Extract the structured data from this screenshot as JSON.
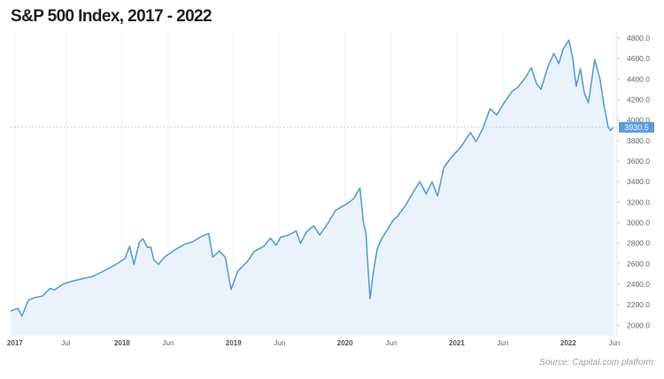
{
  "chart_data": {
    "type": "area",
    "title": "S&P 500 Index, 2017 - 2022",
    "xlabel": "",
    "ylabel": "",
    "ylim": [
      1900,
      4860
    ],
    "xlim": [
      "2017-01-01",
      "2022-06-10"
    ],
    "grid": "vertical",
    "legend": "none",
    "current_value_label": "3930.5",
    "y_ticks": [
      "2000.0",
      "2200.0",
      "2400.0",
      "2600.0",
      "2800.0",
      "3000.0",
      "3200.0",
      "3400.0",
      "3600.0",
      "3800.0",
      "4000.0",
      "4200.0",
      "4400.0",
      "4600.0",
      "4800.0"
    ],
    "x_ticks": [
      {
        "label": "2017",
        "date": "2017-01-15",
        "year": true
      },
      {
        "label": "Jul",
        "date": "2017-07-01",
        "year": false
      },
      {
        "label": "2018",
        "date": "2018-01-01",
        "year": true
      },
      {
        "label": "Jun",
        "date": "2018-06-01",
        "year": false
      },
      {
        "label": "2019",
        "date": "2019-01-01",
        "year": true
      },
      {
        "label": "Jun",
        "date": "2019-06-01",
        "year": false
      },
      {
        "label": "2020",
        "date": "2020-01-01",
        "year": true
      },
      {
        "label": "Jun",
        "date": "2020-06-01",
        "year": false
      },
      {
        "label": "2021",
        "date": "2021-01-01",
        "year": true
      },
      {
        "label": "Jun",
        "date": "2021-06-01",
        "year": false
      },
      {
        "label": "2022",
        "date": "2022-01-01",
        "year": true
      },
      {
        "label": "Jun",
        "date": "2022-06-01",
        "year": false
      }
    ],
    "series": [
      {
        "name": "",
        "points": [
          [
            "2017-01-01",
            2140
          ],
          [
            "2017-01-25",
            2165
          ],
          [
            "2017-02-07",
            2090
          ],
          [
            "2017-02-28",
            2245
          ],
          [
            "2017-03-20",
            2270
          ],
          [
            "2017-04-15",
            2285
          ],
          [
            "2017-05-10",
            2360
          ],
          [
            "2017-05-25",
            2345
          ],
          [
            "2017-06-20",
            2400
          ],
          [
            "2017-07-15",
            2425
          ],
          [
            "2017-08-10",
            2445
          ],
          [
            "2017-09-01",
            2460
          ],
          [
            "2017-09-25",
            2475
          ],
          [
            "2017-10-20",
            2510
          ],
          [
            "2017-11-15",
            2550
          ],
          [
            "2017-12-10",
            2590
          ],
          [
            "2018-01-10",
            2650
          ],
          [
            "2018-01-26",
            2770
          ],
          [
            "2018-02-09",
            2595
          ],
          [
            "2018-02-26",
            2805
          ],
          [
            "2018-03-10",
            2845
          ],
          [
            "2018-03-25",
            2760
          ],
          [
            "2018-04-05",
            2760
          ],
          [
            "2018-04-15",
            2640
          ],
          [
            "2018-04-30",
            2595
          ],
          [
            "2018-05-20",
            2665
          ],
          [
            "2018-06-10",
            2710
          ],
          [
            "2018-07-01",
            2750
          ],
          [
            "2018-07-25",
            2790
          ],
          [
            "2018-08-20",
            2815
          ],
          [
            "2018-09-20",
            2870
          ],
          [
            "2018-10-12",
            2895
          ],
          [
            "2018-10-25",
            2665
          ],
          [
            "2018-11-15",
            2725
          ],
          [
            "2018-12-05",
            2665
          ],
          [
            "2018-12-24",
            2350
          ],
          [
            "2019-01-15",
            2530
          ],
          [
            "2019-02-15",
            2620
          ],
          [
            "2019-03-10",
            2720
          ],
          [
            "2019-04-10",
            2770
          ],
          [
            "2019-05-02",
            2850
          ],
          [
            "2019-05-20",
            2780
          ],
          [
            "2019-06-05",
            2860
          ],
          [
            "2019-07-01",
            2880
          ],
          [
            "2019-07-25",
            2920
          ],
          [
            "2019-08-08",
            2800
          ],
          [
            "2019-08-28",
            2910
          ],
          [
            "2019-09-20",
            2970
          ],
          [
            "2019-10-10",
            2880
          ],
          [
            "2019-11-05",
            2990
          ],
          [
            "2019-12-01",
            3120
          ],
          [
            "2020-01-10",
            3190
          ],
          [
            "2020-01-31",
            3240
          ],
          [
            "2020-02-19",
            3340
          ],
          [
            "2020-03-01",
            3010
          ],
          [
            "2020-03-10",
            2890
          ],
          [
            "2020-03-16",
            2585
          ],
          [
            "2020-03-23",
            2260
          ],
          [
            "2020-04-01",
            2480
          ],
          [
            "2020-04-15",
            2740
          ],
          [
            "2020-05-01",
            2850
          ],
          [
            "2020-05-20",
            2940
          ],
          [
            "2020-06-08",
            3030
          ],
          [
            "2020-06-20",
            3060
          ],
          [
            "2020-07-15",
            3160
          ],
          [
            "2020-08-10",
            3290
          ],
          [
            "2020-09-02",
            3400
          ],
          [
            "2020-09-23",
            3280
          ],
          [
            "2020-10-12",
            3400
          ],
          [
            "2020-10-30",
            3260
          ],
          [
            "2020-11-20",
            3540
          ],
          [
            "2020-12-15",
            3640
          ],
          [
            "2021-01-15",
            3740
          ],
          [
            "2021-02-15",
            3880
          ],
          [
            "2021-03-05",
            3790
          ],
          [
            "2021-03-26",
            3910
          ],
          [
            "2021-04-20",
            4110
          ],
          [
            "2021-05-12",
            4050
          ],
          [
            "2021-06-01",
            4150
          ],
          [
            "2021-07-01",
            4280
          ],
          [
            "2021-07-20",
            4320
          ],
          [
            "2021-08-15",
            4420
          ],
          [
            "2021-09-02",
            4510
          ],
          [
            "2021-09-20",
            4350
          ],
          [
            "2021-10-04",
            4300
          ],
          [
            "2021-10-25",
            4510
          ],
          [
            "2021-11-15",
            4650
          ],
          [
            "2021-12-01",
            4550
          ],
          [
            "2021-12-15",
            4690
          ],
          [
            "2022-01-03",
            4780
          ],
          [
            "2022-01-15",
            4620
          ],
          [
            "2022-01-27",
            4330
          ],
          [
            "2022-02-10",
            4500
          ],
          [
            "2022-02-23",
            4260
          ],
          [
            "2022-03-08",
            4170
          ],
          [
            "2022-03-29",
            4590
          ],
          [
            "2022-04-15",
            4400
          ],
          [
            "2022-04-29",
            4130
          ],
          [
            "2022-05-12",
            3930
          ],
          [
            "2022-05-20",
            3900
          ],
          [
            "2022-05-28",
            3930.5
          ]
        ]
      }
    ],
    "colors": {
      "line": "#5a9be0",
      "area": "#eaf3fc",
      "marker": "#5a9be0",
      "marker_text": "#ffffff"
    }
  },
  "source_text": "Source:  Capital.com platform"
}
